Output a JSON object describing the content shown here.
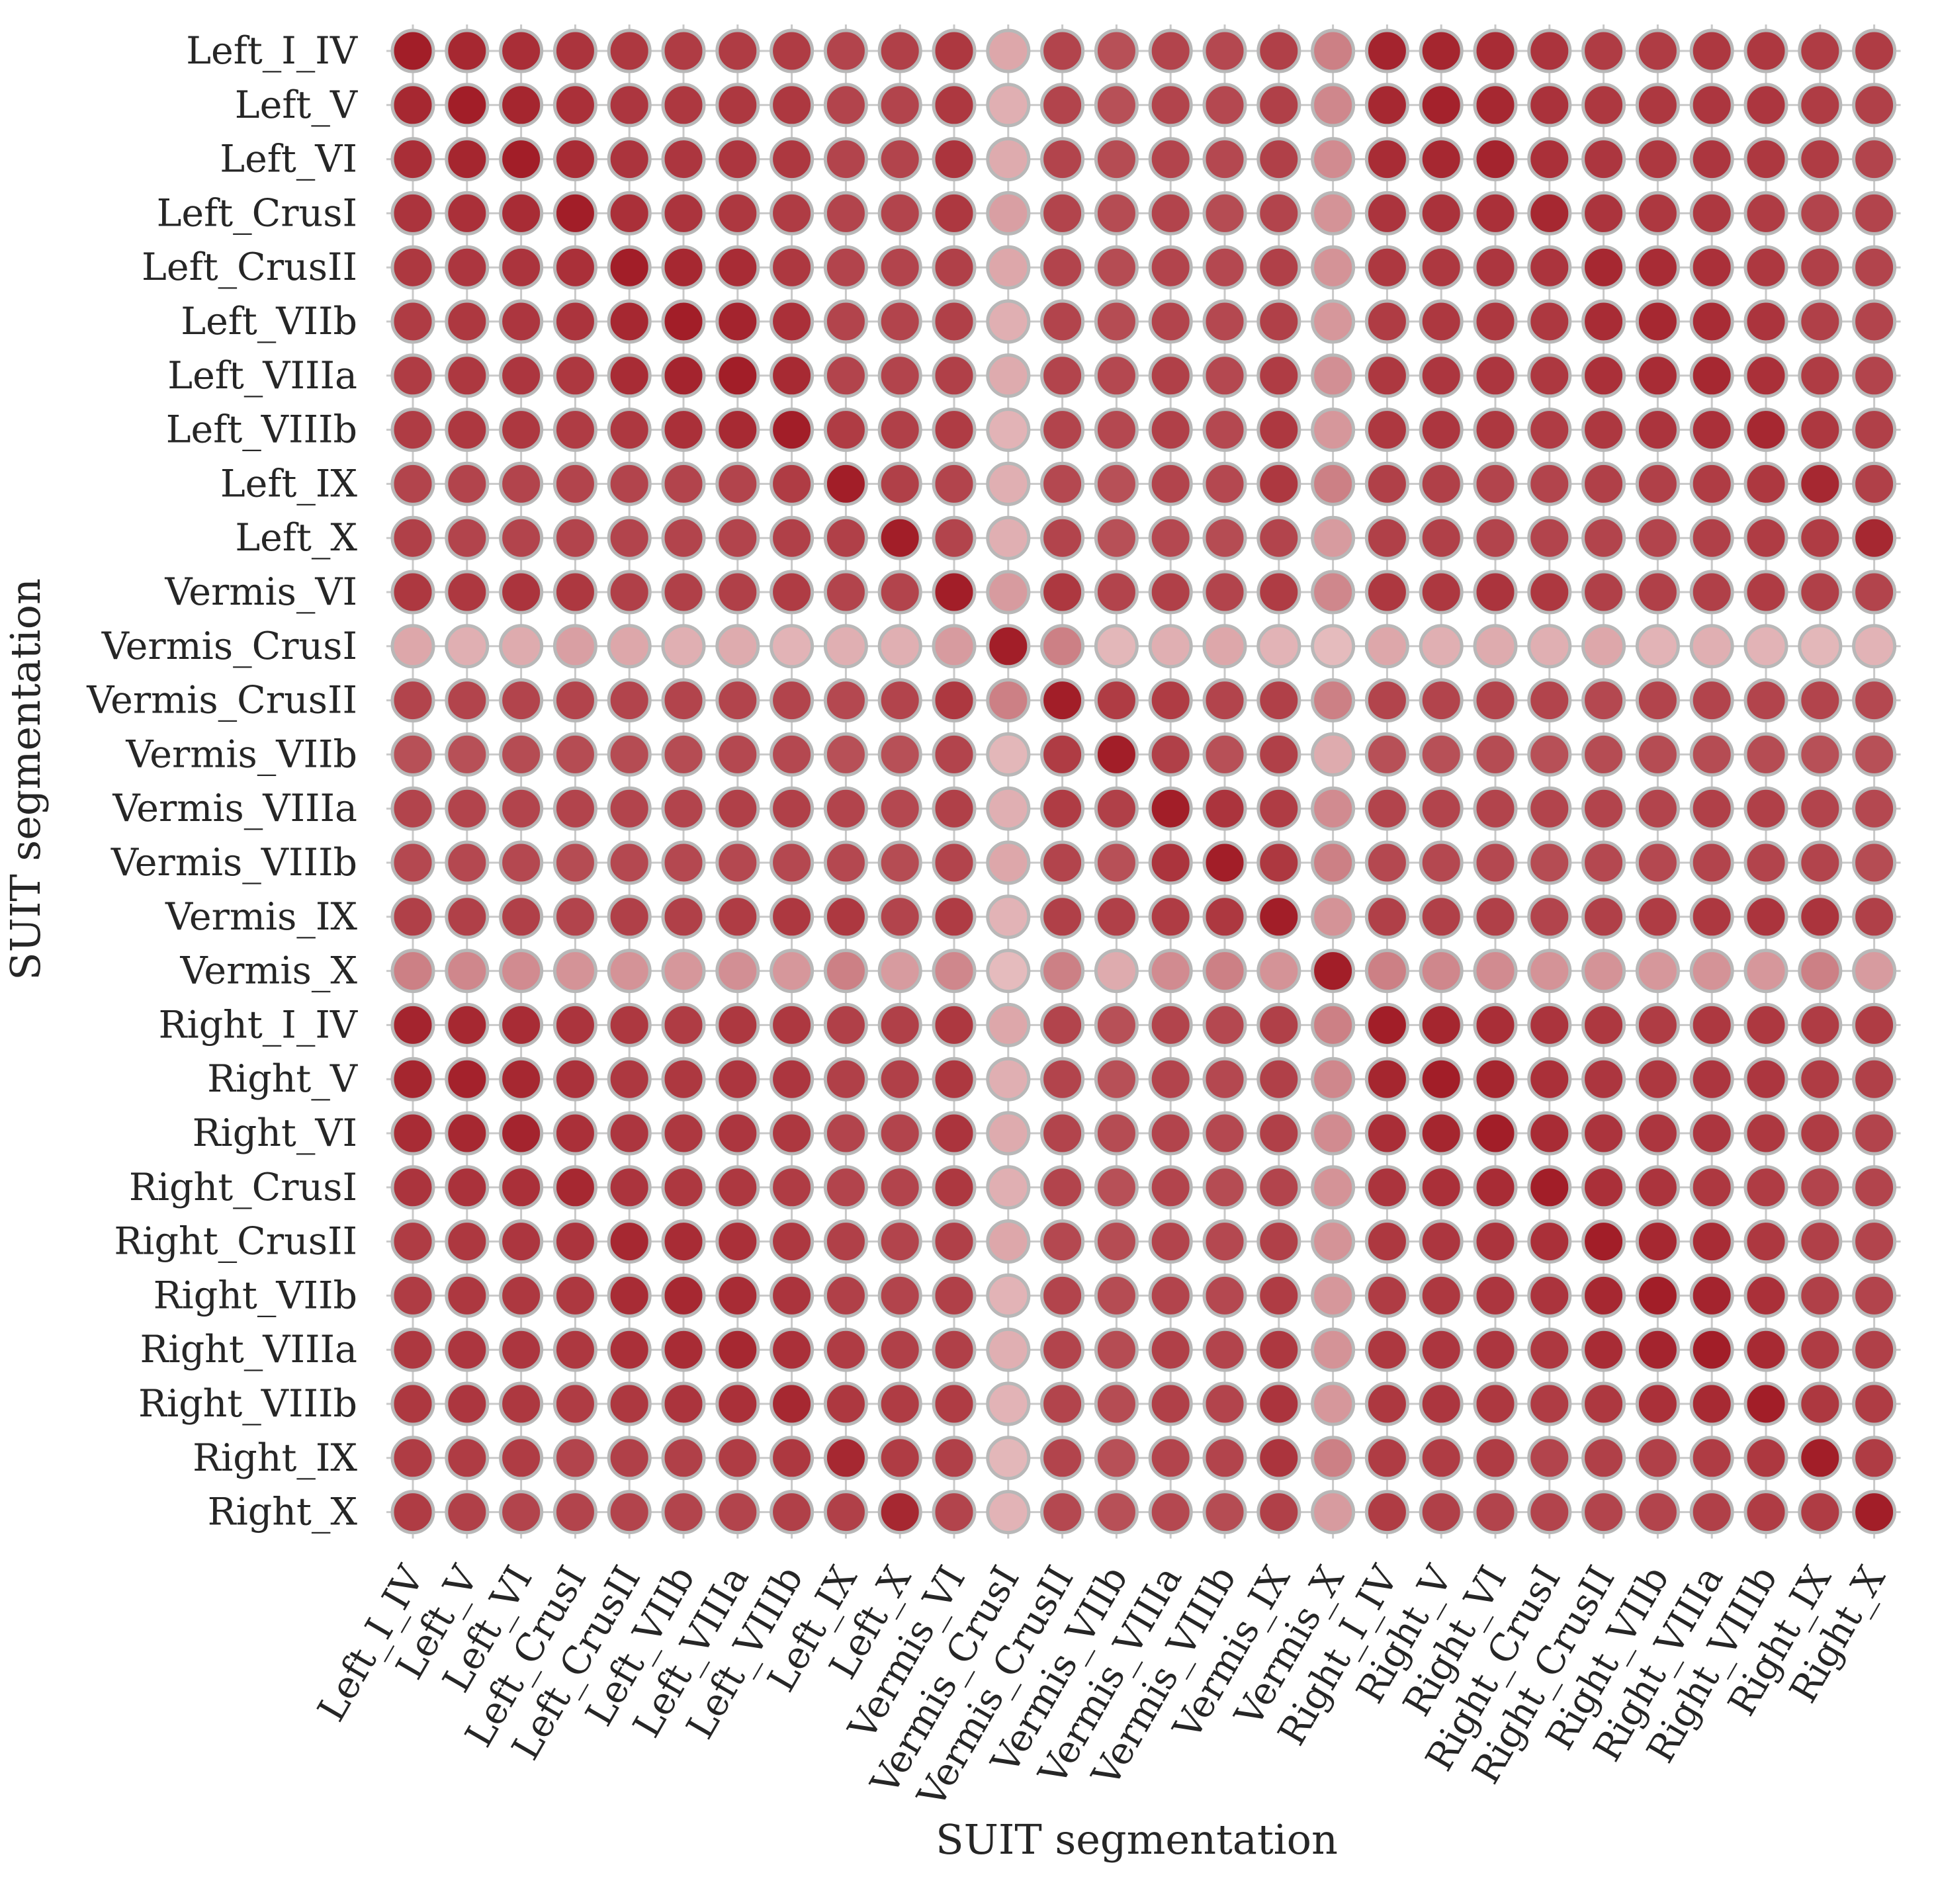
{
  "chart_data": {
    "type": "heatmap",
    "marker": "circle",
    "title": "",
    "xlabel": "SUIT segmentation",
    "ylabel": "SUIT segmentation",
    "categories": [
      "Left_I_IV",
      "Left_V",
      "Left_VI",
      "Left_CrusI",
      "Left_CrusII",
      "Left_VIIb",
      "Left_VIIIa",
      "Left_VIIIb",
      "Left_IX",
      "Left_X",
      "Vermis_VI",
      "Vermis_CrusI",
      "Vermis_CrusII",
      "Vermis_VIIb",
      "Vermis_VIIIa",
      "Vermis_VIIIb",
      "Vermis_IX",
      "Vermis_X",
      "Right_I_IV",
      "Right_V",
      "Right_VI",
      "Right_CrusI",
      "Right_CrusII",
      "Right_VIIb",
      "Right_VIIIa",
      "Right_VIIIb",
      "Right_IX",
      "Right_X"
    ],
    "values": [
      [
        0.99,
        0.94,
        0.91,
        0.88,
        0.86,
        0.84,
        0.84,
        0.84,
        0.8,
        0.82,
        0.86,
        0.3,
        0.8,
        0.74,
        0.8,
        0.78,
        0.82,
        0.5,
        0.96,
        0.95,
        0.92,
        0.88,
        0.84,
        0.84,
        0.86,
        0.86,
        0.84,
        0.84
      ],
      [
        0.94,
        0.99,
        0.95,
        0.9,
        0.87,
        0.86,
        0.86,
        0.86,
        0.8,
        0.8,
        0.86,
        0.26,
        0.8,
        0.74,
        0.8,
        0.78,
        0.82,
        0.46,
        0.94,
        0.97,
        0.94,
        0.89,
        0.86,
        0.86,
        0.87,
        0.87,
        0.84,
        0.82
      ],
      [
        0.91,
        0.95,
        0.99,
        0.92,
        0.88,
        0.87,
        0.87,
        0.86,
        0.8,
        0.8,
        0.88,
        0.28,
        0.8,
        0.76,
        0.8,
        0.78,
        0.82,
        0.44,
        0.92,
        0.94,
        0.96,
        0.9,
        0.87,
        0.86,
        0.87,
        0.86,
        0.84,
        0.8
      ],
      [
        0.88,
        0.9,
        0.92,
        0.99,
        0.9,
        0.88,
        0.86,
        0.84,
        0.8,
        0.8,
        0.86,
        0.34,
        0.8,
        0.76,
        0.8,
        0.76,
        0.8,
        0.4,
        0.88,
        0.89,
        0.9,
        0.94,
        0.88,
        0.86,
        0.86,
        0.84,
        0.8,
        0.8
      ],
      [
        0.86,
        0.87,
        0.88,
        0.9,
        0.99,
        0.94,
        0.92,
        0.86,
        0.8,
        0.8,
        0.82,
        0.3,
        0.8,
        0.76,
        0.8,
        0.78,
        0.82,
        0.4,
        0.86,
        0.86,
        0.87,
        0.88,
        0.94,
        0.92,
        0.9,
        0.86,
        0.82,
        0.8
      ],
      [
        0.84,
        0.86,
        0.87,
        0.88,
        0.94,
        0.99,
        0.96,
        0.9,
        0.8,
        0.8,
        0.82,
        0.26,
        0.8,
        0.76,
        0.8,
        0.78,
        0.82,
        0.38,
        0.84,
        0.86,
        0.86,
        0.86,
        0.92,
        0.94,
        0.92,
        0.88,
        0.82,
        0.8
      ],
      [
        0.84,
        0.86,
        0.87,
        0.86,
        0.92,
        0.96,
        0.99,
        0.93,
        0.8,
        0.8,
        0.82,
        0.28,
        0.8,
        0.78,
        0.82,
        0.78,
        0.84,
        0.42,
        0.86,
        0.87,
        0.87,
        0.86,
        0.9,
        0.92,
        0.94,
        0.9,
        0.84,
        0.8
      ],
      [
        0.84,
        0.86,
        0.86,
        0.84,
        0.86,
        0.9,
        0.93,
        0.99,
        0.84,
        0.82,
        0.84,
        0.24,
        0.8,
        0.78,
        0.82,
        0.78,
        0.86,
        0.38,
        0.86,
        0.87,
        0.86,
        0.84,
        0.86,
        0.88,
        0.9,
        0.94,
        0.86,
        0.82
      ],
      [
        0.8,
        0.8,
        0.8,
        0.8,
        0.8,
        0.8,
        0.8,
        0.84,
        0.99,
        0.82,
        0.8,
        0.26,
        0.78,
        0.74,
        0.8,
        0.78,
        0.86,
        0.5,
        0.82,
        0.82,
        0.8,
        0.8,
        0.82,
        0.82,
        0.84,
        0.86,
        0.94,
        0.82
      ],
      [
        0.82,
        0.8,
        0.8,
        0.8,
        0.8,
        0.8,
        0.8,
        0.82,
        0.82,
        0.99,
        0.8,
        0.26,
        0.8,
        0.74,
        0.78,
        0.76,
        0.8,
        0.36,
        0.82,
        0.82,
        0.8,
        0.8,
        0.8,
        0.8,
        0.82,
        0.84,
        0.84,
        0.94
      ],
      [
        0.86,
        0.86,
        0.88,
        0.86,
        0.82,
        0.82,
        0.82,
        0.84,
        0.8,
        0.8,
        0.99,
        0.36,
        0.86,
        0.8,
        0.82,
        0.8,
        0.84,
        0.46,
        0.86,
        0.86,
        0.88,
        0.86,
        0.82,
        0.82,
        0.82,
        0.84,
        0.82,
        0.8
      ],
      [
        0.3,
        0.26,
        0.28,
        0.34,
        0.3,
        0.26,
        0.28,
        0.24,
        0.26,
        0.26,
        0.36,
        0.99,
        0.5,
        0.22,
        0.26,
        0.3,
        0.24,
        0.2,
        0.3,
        0.26,
        0.28,
        0.26,
        0.3,
        0.24,
        0.26,
        0.24,
        0.22,
        0.24
      ],
      [
        0.8,
        0.8,
        0.8,
        0.8,
        0.8,
        0.8,
        0.8,
        0.8,
        0.78,
        0.8,
        0.86,
        0.5,
        0.99,
        0.84,
        0.84,
        0.8,
        0.82,
        0.5,
        0.8,
        0.8,
        0.8,
        0.8,
        0.78,
        0.8,
        0.8,
        0.8,
        0.8,
        0.78
      ],
      [
        0.74,
        0.74,
        0.76,
        0.76,
        0.76,
        0.76,
        0.78,
        0.78,
        0.74,
        0.74,
        0.8,
        0.22,
        0.84,
        0.99,
        0.82,
        0.74,
        0.82,
        0.28,
        0.74,
        0.74,
        0.76,
        0.74,
        0.76,
        0.76,
        0.76,
        0.76,
        0.74,
        0.74
      ],
      [
        0.8,
        0.8,
        0.8,
        0.8,
        0.8,
        0.8,
        0.82,
        0.82,
        0.8,
        0.78,
        0.82,
        0.26,
        0.84,
        0.82,
        0.99,
        0.88,
        0.84,
        0.44,
        0.8,
        0.8,
        0.8,
        0.8,
        0.8,
        0.8,
        0.82,
        0.82,
        0.8,
        0.78
      ],
      [
        0.78,
        0.78,
        0.78,
        0.76,
        0.78,
        0.78,
        0.78,
        0.78,
        0.78,
        0.76,
        0.8,
        0.3,
        0.8,
        0.74,
        0.88,
        0.99,
        0.86,
        0.5,
        0.78,
        0.78,
        0.78,
        0.76,
        0.78,
        0.78,
        0.8,
        0.8,
        0.8,
        0.76
      ],
      [
        0.82,
        0.82,
        0.82,
        0.8,
        0.82,
        0.82,
        0.84,
        0.86,
        0.86,
        0.8,
        0.84,
        0.24,
        0.82,
        0.82,
        0.84,
        0.86,
        0.99,
        0.4,
        0.82,
        0.82,
        0.82,
        0.8,
        0.82,
        0.84,
        0.86,
        0.88,
        0.88,
        0.82
      ],
      [
        0.5,
        0.46,
        0.44,
        0.4,
        0.4,
        0.38,
        0.42,
        0.38,
        0.5,
        0.36,
        0.46,
        0.2,
        0.5,
        0.28,
        0.44,
        0.5,
        0.4,
        0.99,
        0.5,
        0.46,
        0.44,
        0.4,
        0.4,
        0.38,
        0.4,
        0.38,
        0.5,
        0.36
      ],
      [
        0.96,
        0.94,
        0.92,
        0.88,
        0.86,
        0.84,
        0.86,
        0.86,
        0.82,
        0.82,
        0.86,
        0.3,
        0.8,
        0.74,
        0.8,
        0.78,
        0.82,
        0.5,
        0.99,
        0.95,
        0.91,
        0.88,
        0.86,
        0.84,
        0.86,
        0.86,
        0.84,
        0.84
      ],
      [
        0.95,
        0.97,
        0.94,
        0.89,
        0.86,
        0.86,
        0.87,
        0.87,
        0.82,
        0.82,
        0.86,
        0.26,
        0.8,
        0.74,
        0.8,
        0.78,
        0.82,
        0.46,
        0.95,
        0.99,
        0.95,
        0.9,
        0.87,
        0.86,
        0.87,
        0.87,
        0.84,
        0.82
      ],
      [
        0.92,
        0.94,
        0.96,
        0.9,
        0.87,
        0.86,
        0.87,
        0.86,
        0.8,
        0.8,
        0.88,
        0.28,
        0.8,
        0.76,
        0.8,
        0.78,
        0.82,
        0.44,
        0.91,
        0.95,
        0.99,
        0.92,
        0.88,
        0.87,
        0.87,
        0.86,
        0.84,
        0.8
      ],
      [
        0.88,
        0.89,
        0.9,
        0.94,
        0.88,
        0.86,
        0.86,
        0.84,
        0.8,
        0.8,
        0.86,
        0.26,
        0.8,
        0.74,
        0.8,
        0.76,
        0.8,
        0.4,
        0.88,
        0.9,
        0.92,
        0.99,
        0.9,
        0.88,
        0.86,
        0.84,
        0.8,
        0.8
      ],
      [
        0.84,
        0.86,
        0.87,
        0.88,
        0.94,
        0.92,
        0.9,
        0.86,
        0.82,
        0.8,
        0.82,
        0.3,
        0.78,
        0.76,
        0.8,
        0.78,
        0.82,
        0.4,
        0.86,
        0.87,
        0.88,
        0.9,
        0.99,
        0.94,
        0.92,
        0.86,
        0.82,
        0.8
      ],
      [
        0.84,
        0.86,
        0.86,
        0.86,
        0.92,
        0.94,
        0.92,
        0.88,
        0.82,
        0.8,
        0.82,
        0.24,
        0.8,
        0.76,
        0.8,
        0.78,
        0.84,
        0.38,
        0.84,
        0.86,
        0.87,
        0.88,
        0.94,
        0.99,
        0.96,
        0.9,
        0.82,
        0.8
      ],
      [
        0.86,
        0.87,
        0.87,
        0.86,
        0.9,
        0.92,
        0.94,
        0.9,
        0.84,
        0.82,
        0.82,
        0.26,
        0.8,
        0.76,
        0.82,
        0.8,
        0.86,
        0.4,
        0.86,
        0.87,
        0.87,
        0.86,
        0.92,
        0.96,
        0.99,
        0.93,
        0.84,
        0.82
      ],
      [
        0.86,
        0.87,
        0.86,
        0.84,
        0.86,
        0.88,
        0.9,
        0.94,
        0.86,
        0.84,
        0.84,
        0.24,
        0.8,
        0.76,
        0.82,
        0.8,
        0.88,
        0.38,
        0.86,
        0.87,
        0.86,
        0.84,
        0.86,
        0.9,
        0.93,
        0.99,
        0.86,
        0.84
      ],
      [
        0.84,
        0.84,
        0.84,
        0.8,
        0.82,
        0.82,
        0.84,
        0.86,
        0.94,
        0.84,
        0.82,
        0.22,
        0.8,
        0.74,
        0.8,
        0.8,
        0.88,
        0.5,
        0.84,
        0.84,
        0.84,
        0.8,
        0.82,
        0.82,
        0.84,
        0.86,
        0.99,
        0.84
      ],
      [
        0.84,
        0.82,
        0.8,
        0.8,
        0.8,
        0.8,
        0.8,
        0.82,
        0.82,
        0.94,
        0.8,
        0.24,
        0.78,
        0.74,
        0.78,
        0.76,
        0.82,
        0.36,
        0.84,
        0.82,
        0.8,
        0.8,
        0.8,
        0.8,
        0.82,
        0.84,
        0.84,
        0.99
      ]
    ],
    "color_low": "#f6e3e3",
    "color_high": "#a11c26",
    "marker_edge_color": "#b8b8b8",
    "grid": true,
    "grid_color": "#c9c9c9",
    "xtick_rotation": -60,
    "legend": "none"
  }
}
